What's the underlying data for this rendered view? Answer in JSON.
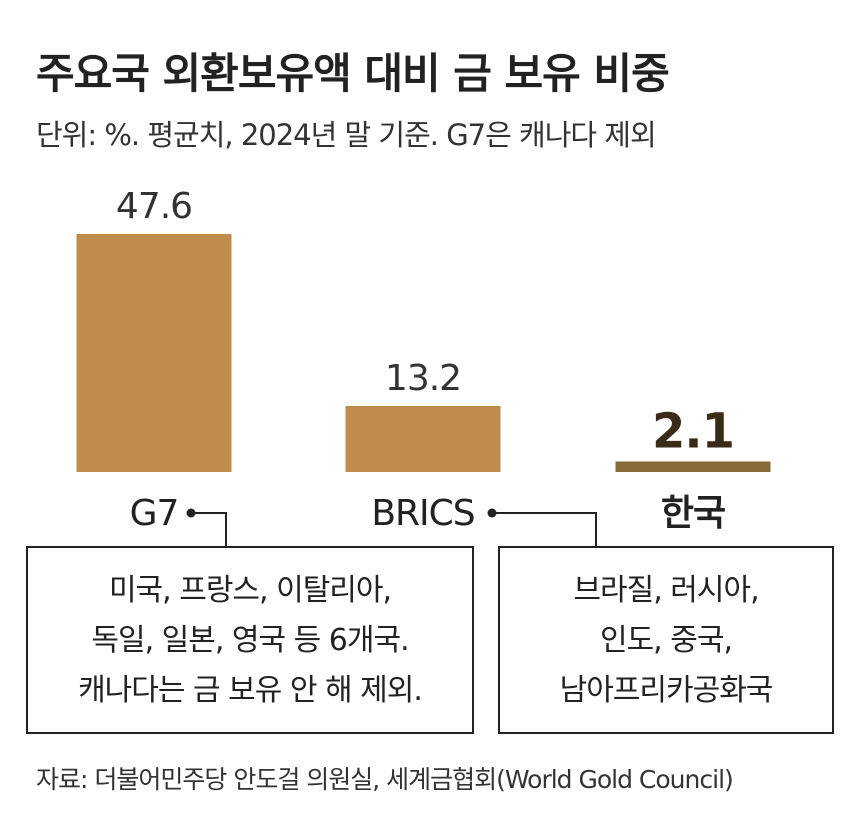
{
  "chart_data": {
    "type": "bar",
    "title": "주요국 외환보유액 대비 금 보유 비중",
    "subtitle": "단위: %. 평균치, 2024년 말 기준. G7은 캐나다 제외",
    "categories": [
      "G7",
      "BRICS",
      "한국"
    ],
    "values": [
      47.6,
      13.2,
      2.1
    ],
    "value_labels": [
      "47.6",
      "13.2",
      "2.1"
    ],
    "ylim": [
      0,
      47.6
    ],
    "grid": false,
    "colors": {
      "bar": "#c08c4d",
      "highlight": "#8a6a3b"
    },
    "highlight_category": "한국"
  },
  "notes": {
    "g7": [
      "미국, 프랑스, 이탈리아,",
      "독일, 일본, 영국 등 6개국.",
      "캐나다는 금 보유 안 해 제외."
    ],
    "brics": [
      "브라질, 러시아,",
      "인도, 중국,",
      "남아프리카공화국"
    ]
  },
  "source": "자료: 더불어민주당 안도걸 의원실, 세계금협회(World Gold Council)"
}
